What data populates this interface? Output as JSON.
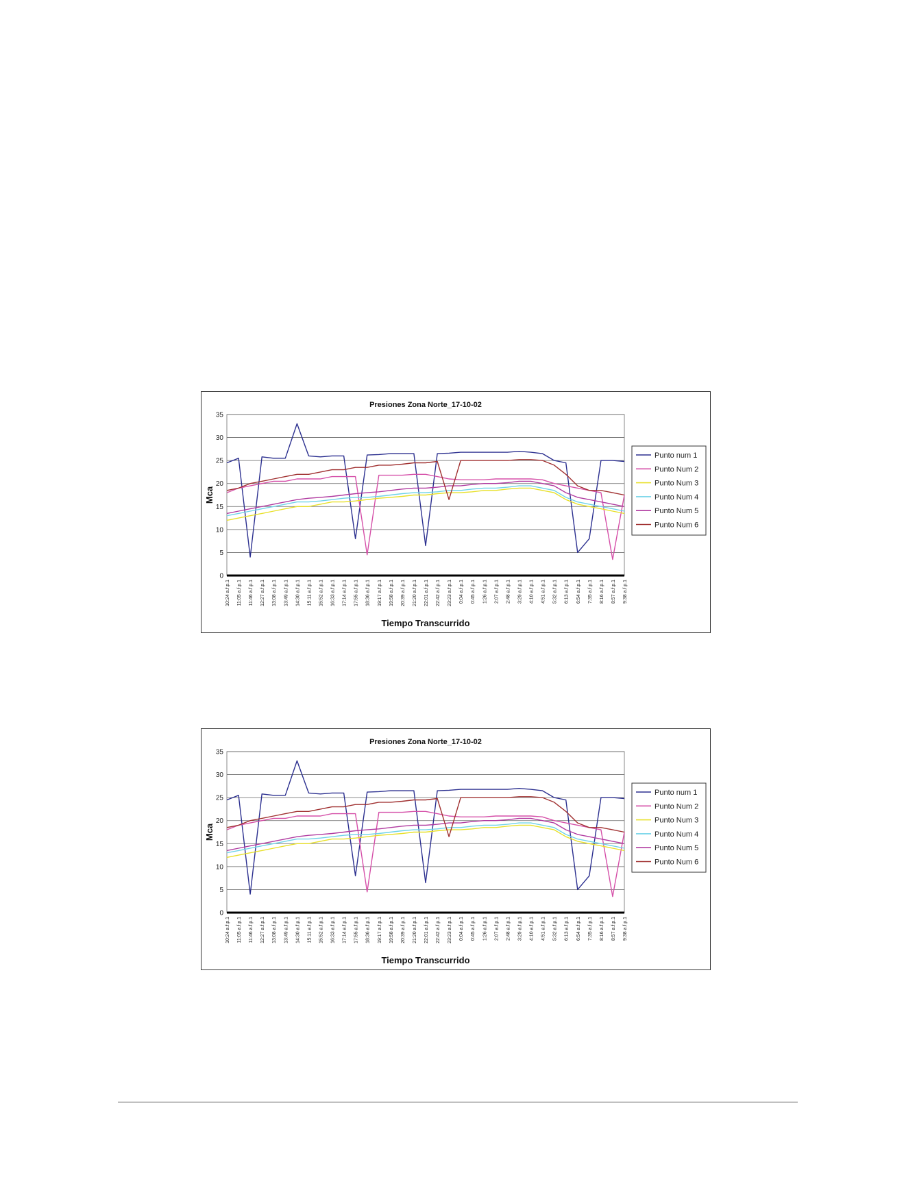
{
  "chart_data": [
    {
      "type": "line",
      "title": "Presiones Zona Norte_17-10-02",
      "xlabel": "Tiempo Transcurrido",
      "ylabel": "Mca",
      "ylim": [
        0,
        35
      ],
      "yticks": [
        0,
        5,
        10,
        15,
        20,
        25,
        30,
        35
      ],
      "grid": "horizontal",
      "legend_position": "right",
      "categories": [
        "10:24 a.f.p.1",
        "11:05 a.f.p.1",
        "11:46 a.f.p.1",
        "12:27 a.f.p.1",
        "13:08 a.f.p.1",
        "13:49 a.f.p.1",
        "14:30 a.f.p.1",
        "15:11 a.f.p.1",
        "15:52 a.f.p.1",
        "16:33 a.f.p.1",
        "17:14 a.f.p.1",
        "17:55 a.f.p.1",
        "18:36 a.f.p.1",
        "19:17 a.f.p.1",
        "19:58 a.f.p.1",
        "20:39 a.f.p.1",
        "21:20 a.f.p.1",
        "22:01 a.f.p.1",
        "22:42 a.f.p.1",
        "23:23 a.f.p.1",
        "0:04 a.f.p.1",
        "0:45 a.f.p.1",
        "1:26 a.f.p.1",
        "2:07 a.f.p.1",
        "2:48 a.f.p.1",
        "3:29 a.f.p.1",
        "4:10 a.f.p.1",
        "4:51 a.f.p.1",
        "5:32 a.f.p.1",
        "6:13 a.f.p.1",
        "6:54 a.f.p.1",
        "7:35 a.f.p.1",
        "8:16 a.f.p.1",
        "8:57 a.f.p.1",
        "9:38 a.f.p.1"
      ],
      "series": [
        {
          "name": "Punto num 1",
          "color": "#2b2f8f",
          "values": [
            24.5,
            25.5,
            4,
            25.8,
            25.5,
            25.5,
            33,
            26,
            25.8,
            26,
            26,
            8,
            26.2,
            26.3,
            26.5,
            26.5,
            26.5,
            6.5,
            26.5,
            26.6,
            26.8,
            26.8,
            26.8,
            26.8,
            26.8,
            27,
            26.8,
            26.5,
            25,
            24.5,
            5,
            8,
            25,
            25,
            24.8
          ]
        },
        {
          "name": "Punto Num 2",
          "color": "#d54fa8",
          "values": [
            18,
            19,
            19.5,
            20,
            20.5,
            20.5,
            21,
            21,
            21,
            21.5,
            21.5,
            21.5,
            4.5,
            21.8,
            21.8,
            21.8,
            22,
            22,
            21.5,
            21,
            20.8,
            20.8,
            20.8,
            21,
            21,
            21,
            21,
            20.8,
            20,
            19.5,
            19,
            18.5,
            18,
            3.5,
            17.5
          ]
        },
        {
          "name": "Punto Num 3",
          "color": "#e8e02a",
          "values": [
            12,
            12.5,
            13,
            13.5,
            14,
            14.5,
            15,
            15,
            15.5,
            16,
            16,
            16.2,
            16.5,
            16.8,
            17,
            17.2,
            17.5,
            17.5,
            17.8,
            18,
            18,
            18.2,
            18.5,
            18.5,
            18.8,
            19,
            19,
            18.5,
            18,
            16.5,
            15.5,
            15,
            14.5,
            14,
            13.5
          ]
        },
        {
          "name": "Punto Num 4",
          "color": "#6fd3e8",
          "values": [
            13,
            13.5,
            14,
            14.5,
            15,
            15.5,
            16,
            16,
            16.2,
            16.5,
            16.8,
            17,
            17,
            17.2,
            17.5,
            17.8,
            18,
            18,
            18.2,
            18.5,
            18.5,
            18.8,
            19,
            19,
            19.2,
            19.5,
            19.5,
            19,
            18.5,
            17,
            16,
            15.5,
            15,
            14.5,
            14
          ]
        },
        {
          "name": "Punto Num 5",
          "color": "#b03aa0",
          "values": [
            13.5,
            14,
            14.5,
            15,
            15.5,
            16,
            16.5,
            16.8,
            17,
            17.2,
            17.5,
            17.8,
            18,
            18.2,
            18.5,
            18.8,
            19,
            19,
            19.2,
            19.5,
            19.5,
            19.8,
            20,
            20,
            20.2,
            20.5,
            20.5,
            20,
            19.5,
            18,
            17,
            16.5,
            16,
            15.5,
            15
          ]
        },
        {
          "name": "Punto Num 6",
          "color": "#a03030",
          "values": [
            18.5,
            19,
            20,
            20.5,
            21,
            21.5,
            22,
            22,
            22.5,
            23,
            23,
            23.5,
            23.5,
            24,
            24,
            24.2,
            24.5,
            24.5,
            24.8,
            16.5,
            25,
            25,
            25,
            25,
            25,
            25.2,
            25.2,
            25,
            24,
            22,
            19.5,
            18.5,
            18.5,
            18,
            17.5
          ]
        }
      ]
    },
    {
      "type": "line",
      "title": "Presiones Zona Norte_17-10-02",
      "xlabel": "Tiempo Transcurrido",
      "ylabel": "Mca",
      "ylim": [
        0,
        35
      ],
      "yticks": [
        0,
        5,
        10,
        15,
        20,
        25,
        30,
        35
      ],
      "grid": "horizontal",
      "legend_position": "right",
      "categories": [
        "10:24 a.f.p.1",
        "11:05 a.f.p.1",
        "11:46 a.f.p.1",
        "12:27 a.f.p.1",
        "13:08 a.f.p.1",
        "13:49 a.f.p.1",
        "14:30 a.f.p.1",
        "15:11 a.f.p.1",
        "15:52 a.f.p.1",
        "16:33 a.f.p.1",
        "17:14 a.f.p.1",
        "17:55 a.f.p.1",
        "18:36 a.f.p.1",
        "19:17 a.f.p.1",
        "19:58 a.f.p.1",
        "20:39 a.f.p.1",
        "21:20 a.f.p.1",
        "22:01 a.f.p.1",
        "22:42 a.f.p.1",
        "23:23 a.f.p.1",
        "0:04 a.f.p.1",
        "0:45 a.f.p.1",
        "1:26 a.f.p.1",
        "2:07 a.f.p.1",
        "2:48 a.f.p.1",
        "3:29 a.f.p.1",
        "4:10 a.f.p.1",
        "4:51 a.f.p.1",
        "5:32 a.f.p.1",
        "6:13 a.f.p.1",
        "6:54 a.f.p.1",
        "7:35 a.f.p.1",
        "8:16 a.f.p.1",
        "8:57 a.f.p.1",
        "9:38 a.f.p.1"
      ],
      "series": [
        {
          "name": "Punto num 1",
          "color": "#2b2f8f",
          "values": [
            24.5,
            25.5,
            4,
            25.8,
            25.5,
            25.5,
            33,
            26,
            25.8,
            26,
            26,
            8,
            26.2,
            26.3,
            26.5,
            26.5,
            26.5,
            6.5,
            26.5,
            26.6,
            26.8,
            26.8,
            26.8,
            26.8,
            26.8,
            27,
            26.8,
            26.5,
            25,
            24.5,
            5,
            8,
            25,
            25,
            24.8
          ]
        },
        {
          "name": "Punto Num 2",
          "color": "#d54fa8",
          "values": [
            18,
            19,
            19.5,
            20,
            20.5,
            20.5,
            21,
            21,
            21,
            21.5,
            21.5,
            21.5,
            4.5,
            21.8,
            21.8,
            21.8,
            22,
            22,
            21.5,
            21,
            20.8,
            20.8,
            20.8,
            21,
            21,
            21,
            21,
            20.8,
            20,
            19.5,
            19,
            18.5,
            18,
            3.5,
            17.5
          ]
        },
        {
          "name": "Punto Num 3",
          "color": "#e8e02a",
          "values": [
            12,
            12.5,
            13,
            13.5,
            14,
            14.5,
            15,
            15,
            15.5,
            16,
            16,
            16.2,
            16.5,
            16.8,
            17,
            17.2,
            17.5,
            17.5,
            17.8,
            18,
            18,
            18.2,
            18.5,
            18.5,
            18.8,
            19,
            19,
            18.5,
            18,
            16.5,
            15.5,
            15,
            14.5,
            14,
            13.5
          ]
        },
        {
          "name": "Punto Num 4",
          "color": "#6fd3e8",
          "values": [
            13,
            13.5,
            14,
            14.5,
            15,
            15.5,
            16,
            16,
            16.2,
            16.5,
            16.8,
            17,
            17,
            17.2,
            17.5,
            17.8,
            18,
            18,
            18.2,
            18.5,
            18.5,
            18.8,
            19,
            19,
            19.2,
            19.5,
            19.5,
            19,
            18.5,
            17,
            16,
            15.5,
            15,
            14.5,
            14
          ]
        },
        {
          "name": "Punto Num 5",
          "color": "#b03aa0",
          "values": [
            13.5,
            14,
            14.5,
            15,
            15.5,
            16,
            16.5,
            16.8,
            17,
            17.2,
            17.5,
            17.8,
            18,
            18.2,
            18.5,
            18.8,
            19,
            19,
            19.2,
            19.5,
            19.5,
            19.8,
            20,
            20,
            20.2,
            20.5,
            20.5,
            20,
            19.5,
            18,
            17,
            16.5,
            16,
            15.5,
            15
          ]
        },
        {
          "name": "Punto Num 6",
          "color": "#a03030",
          "values": [
            18.5,
            19,
            20,
            20.5,
            21,
            21.5,
            22,
            22,
            22.5,
            23,
            23,
            23.5,
            23.5,
            24,
            24,
            24.2,
            24.5,
            24.5,
            24.8,
            16.5,
            25,
            25,
            25,
            25,
            25,
            25.2,
            25.2,
            25,
            24,
            22,
            19.5,
            18.5,
            18.5,
            18,
            17.5
          ]
        }
      ]
    }
  ]
}
